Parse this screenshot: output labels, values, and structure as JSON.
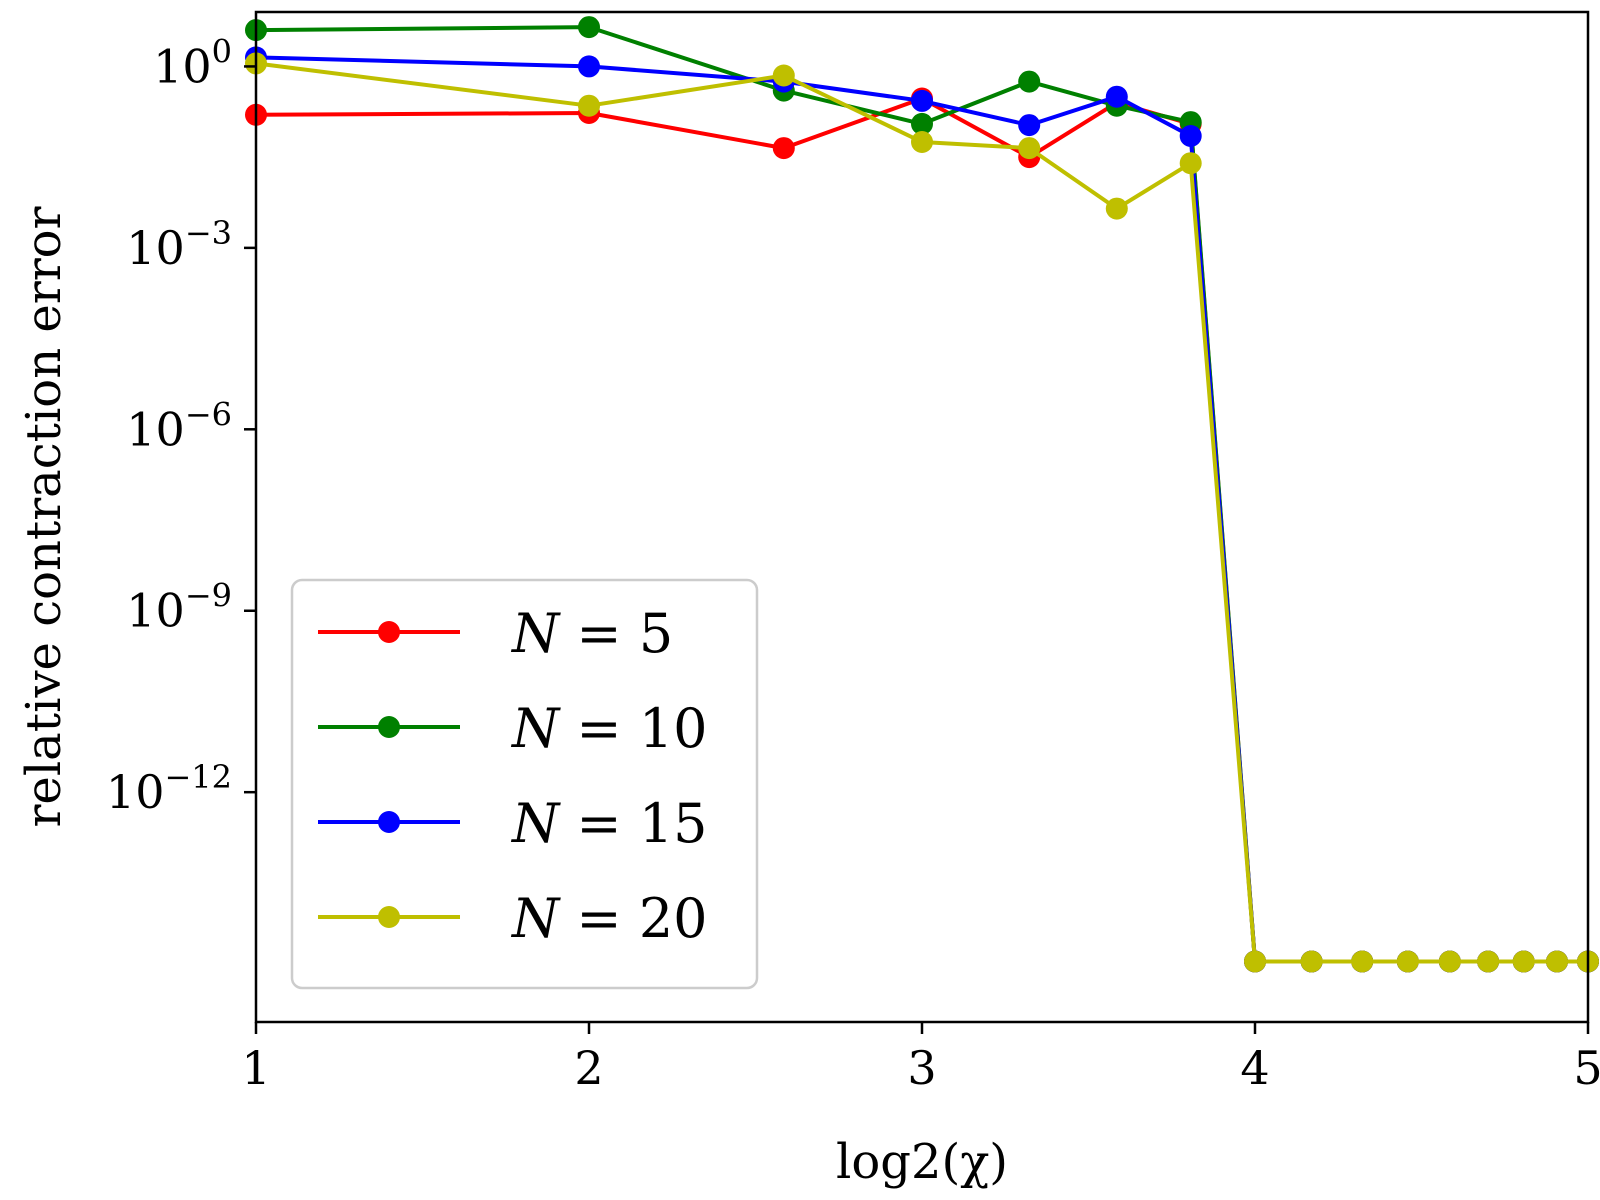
{
  "chart_data": {
    "type": "line",
    "title": "",
    "xlabel": "log2(χ)",
    "ylabel": "relative contraction error",
    "xlim": [
      1,
      5
    ],
    "yscale": "log",
    "ylim_log10": [
      -15.8,
      0.9
    ],
    "grid": false,
    "legend_position": "lower-left",
    "x_ticks": [
      1,
      2,
      3,
      4,
      5
    ],
    "x_tick_labels": [
      "1",
      "2",
      "3",
      "4",
      "5"
    ],
    "y_tick_exponents": [
      0,
      -3,
      -6,
      -9,
      -12
    ],
    "y_tick_base": "10",
    "y_tick_labels": [
      "0",
      "−3",
      "−6",
      "−9",
      "−12"
    ],
    "x": [
      1,
      2,
      2.585,
      3,
      3.322,
      3.585,
      3.807,
      4,
      4.17,
      4.322,
      4.459,
      4.585,
      4.7,
      4.807,
      4.907,
      5
    ],
    "series": [
      {
        "name": "N = 5",
        "legend_var": "N",
        "legend_op": "=",
        "legend_value": "5",
        "color": "#ff0000",
        "log10_values": [
          -0.8,
          -0.77,
          -1.35,
          -0.53,
          -1.5,
          -0.6,
          -0.95,
          -14.8,
          -14.8,
          -14.8,
          -14.8,
          -14.8,
          -14.8,
          -14.8,
          -14.8,
          -14.8
        ]
      },
      {
        "name": "N = 10",
        "legend_var": "N",
        "legend_op": "=",
        "legend_value": "10",
        "color": "#008000",
        "log10_values": [
          0.6,
          0.65,
          -0.4,
          -0.95,
          -0.25,
          -0.65,
          -0.92,
          -14.8,
          -14.8,
          -14.8,
          -14.8,
          -14.8,
          -14.8,
          -14.8,
          -14.8,
          -14.8
        ]
      },
      {
        "name": "N = 15",
        "legend_var": "N",
        "legend_op": "=",
        "legend_value": "15",
        "color": "#0000ff",
        "log10_values": [
          0.15,
          0.0,
          -0.25,
          -0.57,
          -0.97,
          -0.5,
          -1.15,
          -14.8,
          -14.8,
          -14.8,
          -14.8,
          -14.8,
          -14.8,
          -14.8,
          -14.8,
          -14.8
        ]
      },
      {
        "name": "N = 20",
        "legend_var": "N",
        "legend_op": "=",
        "legend_value": "20",
        "color": "#bfbf00",
        "log10_values": [
          0.05,
          -0.65,
          -0.15,
          -1.25,
          -1.35,
          -2.35,
          -1.6,
          -14.8,
          -14.8,
          -14.8,
          -14.8,
          -14.8,
          -14.8,
          -14.8,
          -14.8,
          -14.8
        ]
      }
    ]
  }
}
